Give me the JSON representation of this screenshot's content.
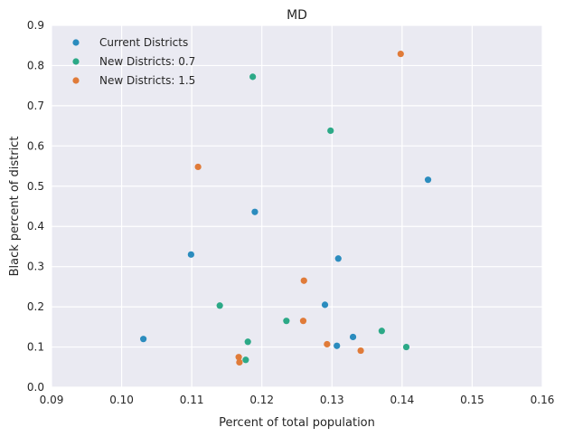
{
  "chart_data": {
    "type": "scatter",
    "title": "MD",
    "xlabel": "Percent of total population",
    "ylabel": "Black percent of district",
    "xlim": [
      0.09,
      0.16
    ],
    "ylim": [
      0.0,
      0.9
    ],
    "xticks": [
      "0.09",
      "0.10",
      "0.11",
      "0.12",
      "0.13",
      "0.14",
      "0.15",
      "0.16"
    ],
    "yticks": [
      "0.0",
      "0.1",
      "0.2",
      "0.3",
      "0.4",
      "0.5",
      "0.6",
      "0.7",
      "0.8",
      "0.9"
    ],
    "grid": true,
    "legend_position": "top-left",
    "series": [
      {
        "name": "Current Districts",
        "color": "#2b8cbe",
        "points": [
          {
            "x": 0.1031,
            "y": 0.12
          },
          {
            "x": 0.1099,
            "y": 0.33
          },
          {
            "x": 0.119,
            "y": 0.436
          },
          {
            "x": 0.129,
            "y": 0.205
          },
          {
            "x": 0.1307,
            "y": 0.103
          },
          {
            "x": 0.1309,
            "y": 0.32
          },
          {
            "x": 0.133,
            "y": 0.125
          },
          {
            "x": 0.1437,
            "y": 0.516
          }
        ]
      },
      {
        "name": "New Districts: 0.7",
        "color": "#2ca987",
        "points": [
          {
            "x": 0.114,
            "y": 0.203
          },
          {
            "x": 0.1177,
            "y": 0.068
          },
          {
            "x": 0.118,
            "y": 0.113
          },
          {
            "x": 0.1187,
            "y": 0.772
          },
          {
            "x": 0.1235,
            "y": 0.165
          },
          {
            "x": 0.1298,
            "y": 0.638
          },
          {
            "x": 0.1371,
            "y": 0.14
          },
          {
            "x": 0.1406,
            "y": 0.1
          }
        ]
      },
      {
        "name": "New Districts: 1.5",
        "color": "#e07b39",
        "points": [
          {
            "x": 0.1109,
            "y": 0.548
          },
          {
            "x": 0.1167,
            "y": 0.075
          },
          {
            "x": 0.1168,
            "y": 0.062
          },
          {
            "x": 0.1259,
            "y": 0.165
          },
          {
            "x": 0.126,
            "y": 0.265
          },
          {
            "x": 0.1293,
            "y": 0.107
          },
          {
            "x": 0.1341,
            "y": 0.091
          },
          {
            "x": 0.1398,
            "y": 0.829
          }
        ]
      }
    ]
  }
}
